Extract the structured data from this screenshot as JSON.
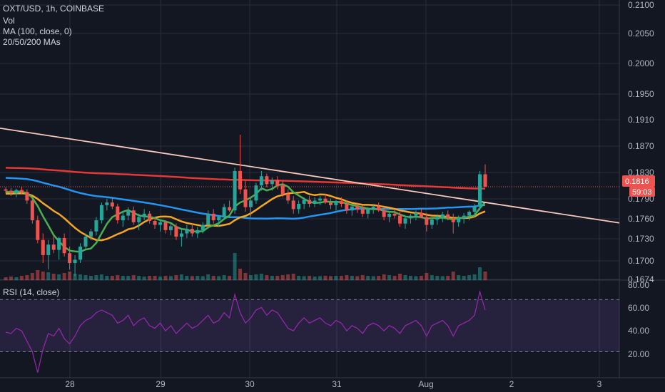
{
  "legend": {
    "symbol": "OXT/USD, 1h, COINBASE",
    "vol": "Vol",
    "ma": "MA (100, close, 0)",
    "mas": "20/50/200 MAs"
  },
  "rsi_legend": "RSI (14, close)",
  "price_badge": "0.1816",
  "countdown_badge": "59:03",
  "colors": {
    "background": "#131722",
    "up": "#26a69a",
    "down": "#ef5350",
    "ma20": "#4caf50",
    "ma50": "#f5a623",
    "ma200": "#2196f3",
    "ma100": "#e53935",
    "trendline": "#f8c9b8",
    "rsi": "#9c27b0",
    "rsi_band": "rgba(126,87,194,0.18)"
  },
  "chart_data": [
    {
      "type": "candlestick",
      "title": "OXT/USD, 1h, COINBASE",
      "x_ticks": [
        "28",
        "29",
        "30",
        "31",
        "Aug",
        "2",
        "3"
      ],
      "y_ticks": [
        "0.2100",
        "0.2050",
        "0.2000",
        "0.1950",
        "0.1910",
        "0.1870",
        "0.1830",
        "0.1790",
        "0.1760",
        "0.1730",
        "0.1700",
        "0.1674"
      ],
      "ylim": [
        0.1674,
        0.21
      ],
      "last_price": 0.1816,
      "candles": [
        [
          0.1812,
          0.1815,
          0.1806,
          0.181
        ],
        [
          0.181,
          0.1814,
          0.1802,
          0.1806
        ],
        [
          0.1806,
          0.1813,
          0.18,
          0.1811
        ],
        [
          0.1811,
          0.1816,
          0.1805,
          0.1808
        ],
        [
          0.1808,
          0.1812,
          0.179,
          0.1795
        ],
        [
          0.1795,
          0.18,
          0.176,
          0.1765
        ],
        [
          0.1765,
          0.1772,
          0.173,
          0.1735
        ],
        [
          0.1735,
          0.1745,
          0.17,
          0.1712
        ],
        [
          0.1712,
          0.1735,
          0.169,
          0.1728
        ],
        [
          0.1728,
          0.1742,
          0.1715,
          0.172
        ],
        [
          0.172,
          0.174,
          0.1705,
          0.1738
        ],
        [
          0.1738,
          0.1745,
          0.171,
          0.1715
        ],
        [
          0.1715,
          0.1725,
          0.169,
          0.17
        ],
        [
          0.17,
          0.1712,
          0.168,
          0.1705
        ],
        [
          0.1705,
          0.173,
          0.17,
          0.1725
        ],
        [
          0.1725,
          0.1745,
          0.172,
          0.174
        ],
        [
          0.174,
          0.1752,
          0.1735,
          0.1748
        ],
        [
          0.1748,
          0.177,
          0.1742,
          0.1765
        ],
        [
          0.1765,
          0.1792,
          0.176,
          0.1788
        ],
        [
          0.1788,
          0.1798,
          0.178,
          0.1792
        ],
        [
          0.1792,
          0.18,
          0.1782,
          0.1786
        ],
        [
          0.1786,
          0.179,
          0.176,
          0.1765
        ],
        [
          0.1765,
          0.1778,
          0.1755,
          0.1772
        ],
        [
          0.1772,
          0.1785,
          0.1765,
          0.178
        ],
        [
          0.178,
          0.1786,
          0.1758,
          0.1762
        ],
        [
          0.1762,
          0.1775,
          0.175,
          0.177
        ],
        [
          0.177,
          0.1782,
          0.1765,
          0.1775
        ],
        [
          0.1775,
          0.1779,
          0.176,
          0.1764
        ],
        [
          0.1764,
          0.177,
          0.1752,
          0.1758
        ],
        [
          0.1758,
          0.1766,
          0.1748,
          0.1762
        ],
        [
          0.1762,
          0.1765,
          0.1745,
          0.175
        ],
        [
          0.175,
          0.176,
          0.1742,
          0.1756
        ],
        [
          0.1756,
          0.176,
          0.1735,
          0.174
        ],
        [
          0.174,
          0.1752,
          0.1725,
          0.1745
        ],
        [
          0.1745,
          0.1758,
          0.1738,
          0.1752
        ],
        [
          0.1752,
          0.176,
          0.174,
          0.1745
        ],
        [
          0.1745,
          0.1755,
          0.1738,
          0.175
        ],
        [
          0.175,
          0.1762,
          0.1745,
          0.1758
        ],
        [
          0.1758,
          0.178,
          0.1752,
          0.1775
        ],
        [
          0.1775,
          0.1782,
          0.176,
          0.1765
        ],
        [
          0.1765,
          0.1772,
          0.1755,
          0.177
        ],
        [
          0.177,
          0.179,
          0.1765,
          0.1785
        ],
        [
          0.1785,
          0.1795,
          0.1778,
          0.178
        ],
        [
          0.178,
          0.1845,
          0.1775,
          0.184
        ],
        [
          0.184,
          0.1895,
          0.1805,
          0.1812
        ],
        [
          0.1812,
          0.1825,
          0.1778,
          0.1785
        ],
        [
          0.1785,
          0.18,
          0.177,
          0.1795
        ],
        [
          0.1795,
          0.1822,
          0.179,
          0.1818
        ],
        [
          0.1818,
          0.184,
          0.181,
          0.1832
        ],
        [
          0.1832,
          0.1836,
          0.1815,
          0.182
        ],
        [
          0.182,
          0.183,
          0.181,
          0.1826
        ],
        [
          0.1826,
          0.1832,
          0.1812,
          0.1818
        ],
        [
          0.1818,
          0.1825,
          0.18,
          0.1805
        ],
        [
          0.1805,
          0.1812,
          0.179,
          0.1795
        ],
        [
          0.1795,
          0.1802,
          0.1775,
          0.1782
        ],
        [
          0.1782,
          0.1795,
          0.1775,
          0.179
        ],
        [
          0.179,
          0.18,
          0.1782,
          0.1796
        ],
        [
          0.1796,
          0.1802,
          0.1785,
          0.179
        ],
        [
          0.179,
          0.18,
          0.1785,
          0.1795
        ],
        [
          0.1795,
          0.1802,
          0.1788,
          0.1798
        ],
        [
          0.1798,
          0.1805,
          0.179,
          0.1792
        ],
        [
          0.1792,
          0.1798,
          0.1782,
          0.1788
        ],
        [
          0.1788,
          0.1796,
          0.178,
          0.1794
        ],
        [
          0.1794,
          0.18,
          0.1785,
          0.179
        ],
        [
          0.179,
          0.1795,
          0.1775,
          0.178
        ],
        [
          0.178,
          0.179,
          0.1772,
          0.1786
        ],
        [
          0.1786,
          0.1792,
          0.1776,
          0.1782
        ],
        [
          0.1782,
          0.1788,
          0.177,
          0.1775
        ],
        [
          0.1775,
          0.1785,
          0.1768,
          0.1782
        ],
        [
          0.1782,
          0.179,
          0.1775,
          0.1786
        ],
        [
          0.1786,
          0.1792,
          0.1778,
          0.178
        ],
        [
          0.178,
          0.1784,
          0.1765,
          0.177
        ],
        [
          0.177,
          0.1778,
          0.1762,
          0.1775
        ],
        [
          0.1775,
          0.1782,
          0.1768,
          0.1772
        ],
        [
          0.1772,
          0.1778,
          0.1755,
          0.176
        ],
        [
          0.176,
          0.1772,
          0.1752,
          0.1768
        ],
        [
          0.1768,
          0.1775,
          0.176,
          0.1772
        ],
        [
          0.1772,
          0.178,
          0.1765,
          0.1776
        ],
        [
          0.1776,
          0.1782,
          0.1768,
          0.177
        ],
        [
          0.177,
          0.1776,
          0.1748,
          0.1758
        ],
        [
          0.1758,
          0.177,
          0.1752,
          0.1766
        ],
        [
          0.1766,
          0.1774,
          0.1758,
          0.177
        ],
        [
          0.177,
          0.1778,
          0.1762,
          0.1774
        ],
        [
          0.1774,
          0.178,
          0.1765,
          0.1768
        ],
        [
          0.1768,
          0.1775,
          0.1745,
          0.1762
        ],
        [
          0.1762,
          0.1772,
          0.1755,
          0.1768
        ],
        [
          0.1768,
          0.1776,
          0.176,
          0.1772
        ],
        [
          0.1772,
          0.178,
          0.1765,
          0.1778
        ],
        [
          0.1778,
          0.179,
          0.1772,
          0.1786
        ],
        [
          0.1786,
          0.184,
          0.178,
          0.1835
        ],
        [
          0.1835,
          0.185,
          0.1815,
          0.1816
        ]
      ],
      "volume": [
        0.2,
        0.25,
        0.2,
        0.3,
        0.35,
        0.5,
        0.7,
        0.6,
        0.55,
        0.45,
        0.4,
        0.5,
        0.6,
        0.45,
        0.4,
        0.35,
        0.3,
        0.35,
        0.4,
        0.3,
        0.3,
        0.35,
        0.3,
        0.3,
        0.35,
        0.3,
        0.25,
        0.3,
        0.3,
        0.25,
        0.3,
        0.28,
        0.35,
        0.4,
        0.3,
        0.28,
        0.3,
        0.28,
        0.4,
        0.3,
        0.28,
        0.35,
        0.3,
        1.9,
        0.8,
        0.5,
        0.35,
        0.4,
        0.45,
        0.35,
        0.3,
        0.3,
        0.35,
        0.4,
        0.45,
        0.3,
        0.28,
        0.3,
        0.25,
        0.28,
        0.3,
        0.28,
        0.3,
        0.3,
        0.35,
        0.3,
        0.28,
        0.35,
        0.3,
        0.28,
        0.3,
        0.4,
        0.35,
        0.3,
        0.45,
        0.35,
        0.3,
        0.28,
        0.3,
        0.5,
        0.35,
        0.3,
        0.28,
        0.3,
        0.6,
        0.35,
        0.3,
        0.35,
        0.4,
        0.9,
        0.6
      ],
      "rsi": {
        "title": "RSI (14, close)",
        "y_ticks": [
          "80.00",
          "60.00",
          "40.00",
          "20.00"
        ],
        "ylim": [
          10,
          85
        ],
        "bands": [
          30,
          70
        ],
        "values": [
          45,
          44,
          48,
          46,
          38,
          30,
          14,
          32,
          44,
          42,
          48,
          40,
          36,
          42,
          50,
          54,
          56,
          60,
          62,
          60,
          58,
          52,
          54,
          58,
          50,
          54,
          56,
          50,
          48,
          52,
          46,
          50,
          44,
          48,
          52,
          48,
          50,
          54,
          58,
          52,
          54,
          60,
          56,
          74,
          60,
          52,
          56,
          62,
          64,
          58,
          62,
          60,
          54,
          48,
          46,
          52,
          56,
          52,
          54,
          56,
          52,
          50,
          54,
          52,
          46,
          50,
          48,
          44,
          50,
          52,
          50,
          46,
          50,
          48,
          44,
          50,
          52,
          54,
          50,
          42,
          50,
          52,
          54,
          50,
          42,
          50,
          52,
          54,
          58,
          76,
          62
        ]
      }
    }
  ]
}
